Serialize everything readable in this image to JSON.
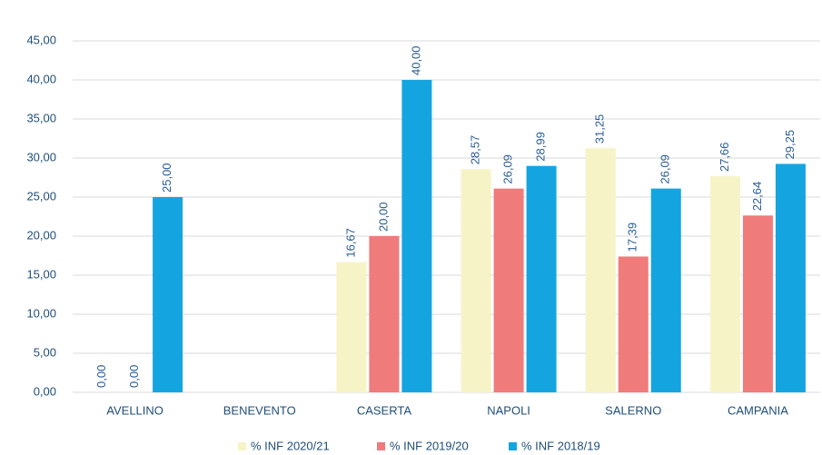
{
  "chart_data": {
    "type": "bar",
    "categories": [
      "AVELLINO",
      "BENEVENTO",
      "CASERTA",
      "NAPOLI",
      "SALERNO",
      "CAMPANIA"
    ],
    "series": [
      {
        "name": "% INF 2020/21",
        "color": "#f6f4c6",
        "values": [
          0,
          null,
          16.67,
          28.57,
          31.25,
          27.66
        ],
        "value_labels": [
          "0,00",
          null,
          "16,67",
          "28,57",
          "31,25",
          "27,66"
        ]
      },
      {
        "name": "% INF 2019/20",
        "color": "#f07b7b",
        "values": [
          0,
          null,
          20,
          26.09,
          17.39,
          22.64
        ],
        "value_labels": [
          "0,00",
          null,
          "20,00",
          "26,09",
          "17,39",
          "22,64"
        ]
      },
      {
        "name": "% INF 2018/19",
        "color": "#14a5e0",
        "values": [
          25,
          null,
          40,
          28.99,
          26.09,
          29.25
        ],
        "value_labels": [
          "25,00",
          null,
          "40,00",
          "28,99",
          "26,09",
          "29,25"
        ]
      }
    ],
    "ylim": [
      0,
      45
    ],
    "yticks": [
      {
        "value": 0,
        "label": "0,00"
      },
      {
        "value": 5,
        "label": "5,00"
      },
      {
        "value": 10,
        "label": "10,00"
      },
      {
        "value": 15,
        "label": "15,00"
      },
      {
        "value": 20,
        "label": "20,00"
      },
      {
        "value": 25,
        "label": "25,00"
      },
      {
        "value": 30,
        "label": "30,00"
      },
      {
        "value": 35,
        "label": "35,00"
      },
      {
        "value": 40,
        "label": "40,00"
      },
      {
        "value": 45,
        "label": "45,00"
      }
    ],
    "grid": true,
    "legend": "bottom"
  }
}
